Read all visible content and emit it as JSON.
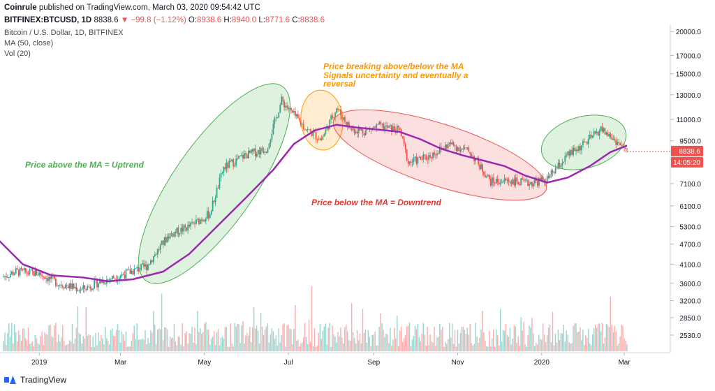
{
  "header": {
    "published_line": "Coinrule published on TradingView.com, March 03, 2020 09:54:42 UTC",
    "published_user": "Coinrule",
    "published_rest": " published on TradingView.com, March 03, 2020 09:54:42 UTC",
    "ticker": "BITFINEX:BTCUSD, 1D",
    "last": "8838.6",
    "change": "▼ −99.8 (−1.12%)",
    "o_label": "O:",
    "o_val": "8938.6",
    "h_label": "H:",
    "h_val": "8940.0",
    "l_label": "L:",
    "l_val": "8771.6",
    "c_label": "C:",
    "c_val": "8838.6"
  },
  "legend": {
    "symbol": "Bitcoin / U.S. Dollar, 1D, BITFINEX",
    "ma": "MA (50, close)",
    "vol": "Vol (20)"
  },
  "footer": {
    "brand": "TradingView"
  },
  "colors": {
    "up": "#26a69a",
    "down": "#ef5350",
    "ma": "#9c27b0",
    "green_ellipse": "#4caf50",
    "orange_ellipse": "#ff9800",
    "red_ellipse": "#ef5350"
  },
  "chart_data": {
    "type": "line",
    "title": "Bitcoin / U.S. Dollar, 1D, BITFINEX",
    "x_ticks": [
      "2019",
      "Mar",
      "May",
      "Jul",
      "Sep",
      "Nov",
      "2020",
      "Mar"
    ],
    "y_ticks": [
      20000.0,
      17000.0,
      15000.0,
      13000.0,
      11000.0,
      9500.0,
      8838.6,
      7100.0,
      6100.0,
      5300.0,
      4700.0,
      4100.0,
      3600.0,
      3200.0,
      2850.0,
      2530.0
    ],
    "y_tick_labels": [
      "20000.0",
      "17000.0",
      "15000.0",
      "13000.0",
      "11000.0",
      "9500.0",
      "7100.0",
      "6100.0",
      "5300.0",
      "4700.0",
      "4100.0",
      "3600.0",
      "3200.0",
      "2850.0",
      "2530.0"
    ],
    "y_scale": "log",
    "ylim": [
      2300,
      20500
    ],
    "last_price_label": "8838.6",
    "countdown_label": "14:05:20",
    "series": [
      {
        "name": "MA (50, close)",
        "x": [
          "2018-12-01",
          "2018-12-20",
          "2019-01-10",
          "2019-02-01",
          "2019-02-20",
          "2019-03-10",
          "2019-04-01",
          "2019-04-20",
          "2019-05-10",
          "2019-06-01",
          "2019-06-20",
          "2019-07-05",
          "2019-07-20",
          "2019-08-05",
          "2019-08-20",
          "2019-09-05",
          "2019-09-20",
          "2019-10-05",
          "2019-10-20",
          "2019-11-05",
          "2019-11-20",
          "2019-12-05",
          "2019-12-20",
          "2020-01-05",
          "2020-01-20",
          "2020-02-05",
          "2020-02-20",
          "2020-03-03"
        ],
        "y": [
          4900,
          4100,
          3800,
          3750,
          3650,
          3700,
          3900,
          4400,
          5300,
          6500,
          7800,
          9300,
          10200,
          10600,
          10400,
          10250,
          10100,
          9600,
          9000,
          8600,
          8300,
          8000,
          7500,
          7150,
          7400,
          8000,
          8800,
          9200
        ]
      },
      {
        "name": "BTCUSD close",
        "x": [
          "2018-12-01",
          "2018-12-15",
          "2019-01-01",
          "2019-01-15",
          "2019-02-01",
          "2019-02-15",
          "2019-03-01",
          "2019-03-20",
          "2019-04-05",
          "2019-04-20",
          "2019-05-05",
          "2019-05-15",
          "2019-05-30",
          "2019-06-15",
          "2019-06-26",
          "2019-07-05",
          "2019-07-15",
          "2019-07-25",
          "2019-08-05",
          "2019-08-15",
          "2019-08-25",
          "2019-09-05",
          "2019-09-20",
          "2019-09-26",
          "2019-10-10",
          "2019-10-26",
          "2019-11-10",
          "2019-11-25",
          "2019-12-10",
          "2019-12-20",
          "2020-01-05",
          "2020-01-20",
          "2020-02-01",
          "2020-02-13",
          "2020-02-25",
          "2020-03-03"
        ],
        "y": [
          3700,
          3900,
          3850,
          3600,
          3450,
          3650,
          3800,
          4050,
          5000,
          5300,
          5800,
          7900,
          8600,
          9000,
          12500,
          11300,
          10200,
          9600,
          11900,
          10300,
          10150,
          10500,
          10200,
          8200,
          8500,
          9300,
          8800,
          7200,
          7250,
          7100,
          7300,
          8600,
          9300,
          10300,
          9400,
          8838.6
        ]
      }
    ],
    "annotations": [
      {
        "text": "Price above the MA = Uptrend",
        "color": "#4caf50"
      },
      {
        "text": "Price breaking above/below the MA",
        "color": "#ff9800"
      },
      {
        "text": "Signals uncertainty and eventually a",
        "color": "#ff9800"
      },
      {
        "text": "reversal",
        "color": "#ff9800"
      },
      {
        "text": "Price below the MA = Downtrend",
        "color": "#e53935"
      }
    ]
  }
}
